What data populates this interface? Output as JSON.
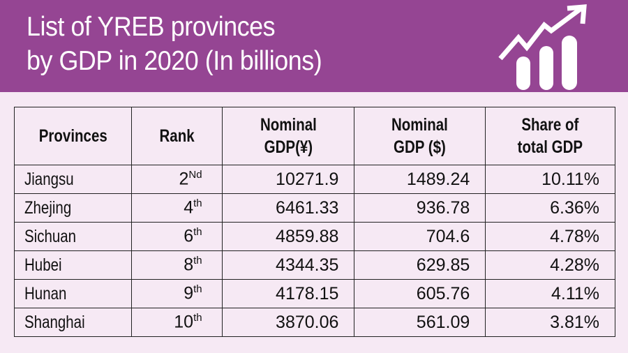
{
  "header": {
    "title_line1": "List of YREB provinces",
    "title_line2": "by GDP in 2020 (In billions)",
    "icon": "growth-chart-icon"
  },
  "colors": {
    "banner": "#954593",
    "background": "#f6e9f4"
  },
  "chart_data": {
    "type": "table",
    "columns": [
      "Provinces",
      "Rank",
      "Nominal GDP(¥)",
      "Nominal GDP ($)",
      "Share of total GDP"
    ],
    "rows": [
      {
        "province": "Jiangsu",
        "rank": "2",
        "rank_suffix": "Nd",
        "gdp_cny": "10271.9",
        "gdp_usd": "1489.24",
        "share": "10.11%"
      },
      {
        "province": "Zhejing",
        "rank": "4",
        "rank_suffix": "th",
        "gdp_cny": "6461.33",
        "gdp_usd": "936.78",
        "share": "6.36%"
      },
      {
        "province": "Sichuan",
        "rank": "6",
        "rank_suffix": "th",
        "gdp_cny": "4859.88",
        "gdp_usd": "704.6",
        "share": "4.78%"
      },
      {
        "province": "Hubei",
        "rank": "8",
        "rank_suffix": "th",
        "gdp_cny": "4344.35",
        "gdp_usd": "629.85",
        "share": "4.28%"
      },
      {
        "province": "Hunan",
        "rank": "9",
        "rank_suffix": "th",
        "gdp_cny": "4178.15",
        "gdp_usd": "605.76",
        "share": "4.11%"
      },
      {
        "province": "Shanghai",
        "rank": "10",
        "rank_suffix": "th",
        "gdp_cny": "3870.06",
        "gdp_usd": "561.09",
        "share": "3.81%"
      }
    ]
  }
}
